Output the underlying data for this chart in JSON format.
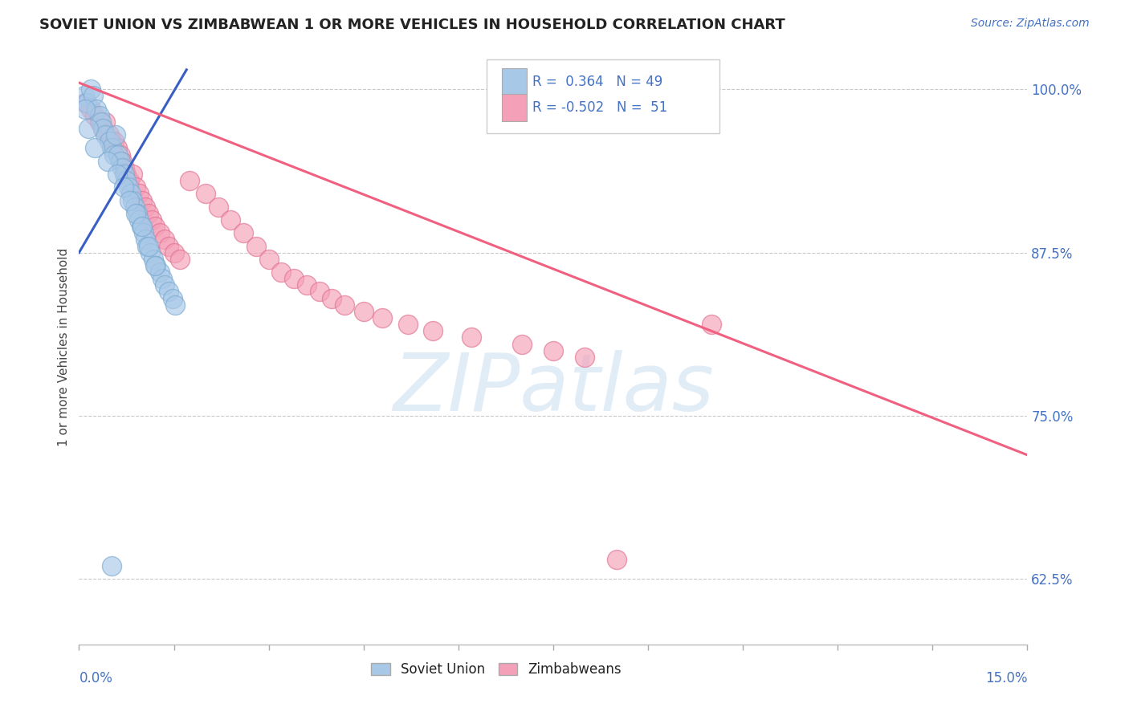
{
  "title": "SOVIET UNION VS ZIMBABWEAN 1 OR MORE VEHICLES IN HOUSEHOLD CORRELATION CHART",
  "source_text": "Source: ZipAtlas.com",
  "ylabel": "1 or more Vehicles in Household",
  "xlim": [
    0.0,
    15.0
  ],
  "ylim": [
    57.5,
    103.0
  ],
  "y_ticks": [
    62.5,
    75.0,
    87.5,
    100.0
  ],
  "soviet_color": "#a8c8e8",
  "soviet_edge_color": "#7aaad0",
  "zimbabwe_color": "#f4a0b8",
  "zimbabwe_edge_color": "#e07090",
  "soviet_line_color": "#3a5fc4",
  "zimbabwe_line_color": "#f06080",
  "soviet_R": 0.364,
  "soviet_N": 49,
  "zimbabwe_R": -0.502,
  "zimbabwe_N": 51,
  "watermark": "ZIPatlas",
  "background_color": "#ffffff",
  "grid_color": "#bbbbbb",
  "tick_color": "#4472c4",
  "soviet_scatter_x": [
    0.08,
    0.12,
    0.18,
    0.22,
    0.28,
    0.32,
    0.35,
    0.38,
    0.42,
    0.48,
    0.52,
    0.55,
    0.58,
    0.62,
    0.65,
    0.68,
    0.72,
    0.75,
    0.78,
    0.82,
    0.85,
    0.88,
    0.92,
    0.95,
    0.98,
    1.02,
    1.05,
    1.08,
    1.12,
    1.18,
    1.22,
    1.28,
    1.32,
    1.35,
    1.42,
    1.48,
    1.52,
    0.1,
    0.15,
    0.25,
    0.45,
    0.6,
    0.7,
    0.8,
    0.9,
    1.0,
    1.1,
    1.2,
    0.52
  ],
  "soviet_scatter_y": [
    99.5,
    99.0,
    100.0,
    99.5,
    98.5,
    98.0,
    97.5,
    97.0,
    96.5,
    96.0,
    95.5,
    95.0,
    96.5,
    95.0,
    94.5,
    94.0,
    93.5,
    93.0,
    92.5,
    92.0,
    91.5,
    91.0,
    90.5,
    90.0,
    89.5,
    89.0,
    88.5,
    88.0,
    87.5,
    87.0,
    86.5,
    86.0,
    85.5,
    85.0,
    84.5,
    84.0,
    83.5,
    98.5,
    97.0,
    95.5,
    94.5,
    93.5,
    92.5,
    91.5,
    90.5,
    89.5,
    88.0,
    86.5,
    63.5
  ],
  "soviet_line_x": [
    0.0,
    1.7
  ],
  "soviet_line_y": [
    87.5,
    101.5
  ],
  "zimbabwe_scatter_x": [
    0.1,
    0.18,
    0.25,
    0.32,
    0.38,
    0.42,
    0.48,
    0.52,
    0.55,
    0.6,
    0.65,
    0.68,
    0.72,
    0.75,
    0.8,
    0.85,
    0.9,
    0.95,
    1.0,
    1.05,
    1.1,
    1.15,
    1.2,
    1.28,
    1.35,
    1.42,
    1.5,
    1.6,
    1.75,
    2.0,
    2.2,
    2.4,
    2.6,
    2.8,
    3.0,
    3.2,
    3.4,
    3.6,
    3.8,
    4.0,
    4.2,
    4.5,
    4.8,
    5.2,
    5.6,
    6.2,
    7.0,
    7.5,
    8.0,
    8.5,
    10.0
  ],
  "zimbabwe_scatter_y": [
    99.0,
    98.5,
    98.0,
    97.5,
    97.0,
    97.5,
    96.5,
    96.0,
    96.0,
    95.5,
    95.0,
    94.5,
    94.0,
    93.5,
    93.0,
    93.5,
    92.5,
    92.0,
    91.5,
    91.0,
    90.5,
    90.0,
    89.5,
    89.0,
    88.5,
    88.0,
    87.5,
    87.0,
    93.0,
    92.0,
    91.0,
    90.0,
    89.0,
    88.0,
    87.0,
    86.0,
    85.5,
    85.0,
    84.5,
    84.0,
    83.5,
    83.0,
    82.5,
    82.0,
    81.5,
    81.0,
    80.5,
    80.0,
    79.5,
    64.0,
    82.0
  ],
  "zimbabwe_line_x": [
    0.0,
    15.0
  ],
  "zimbabwe_line_y": [
    100.5,
    72.0
  ],
  "legend_R1_color": "#4472c4",
  "legend_N1_color": "#4472c4",
  "x_tick_positions": [
    0.0,
    1.5,
    3.0,
    4.5,
    6.0,
    7.5,
    9.0,
    10.5,
    12.0,
    13.5,
    15.0
  ]
}
